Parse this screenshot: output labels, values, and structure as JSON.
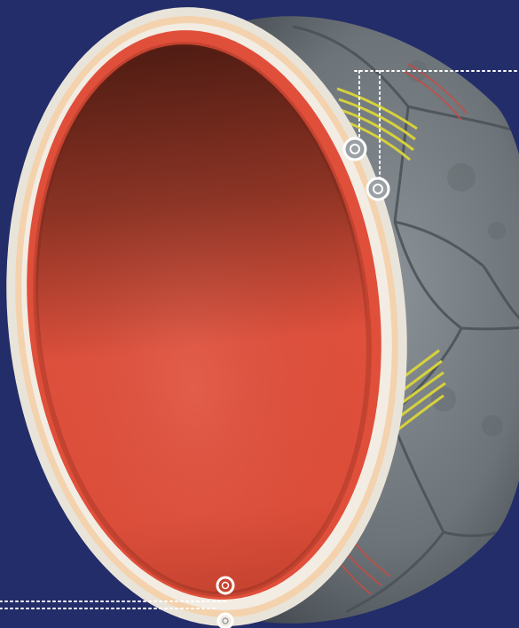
{
  "image": {
    "subject": "ball-cross-section",
    "background_color": "#232d69",
    "colors": {
      "outer_casing": "#7e858a",
      "casing_seam": "#4f565b",
      "yellow_stripes": "#d7d13b",
      "red_stripes": "#c84b43",
      "rim_outer": "#e7e2d6",
      "cream_layer": "#f3d2ad",
      "white_layer": "#f2ece3",
      "red_lining": "#e04f3a",
      "inner_bladder_light": "#e24f3b",
      "inner_bladder_dark": "#5c2419",
      "callout_line": "#ffffff"
    },
    "callout_markers": [
      {
        "name": "marker-upper-1",
        "icon": "ring-marker-icon"
      },
      {
        "name": "marker-upper-2",
        "icon": "ring-marker-icon"
      },
      {
        "name": "marker-lower-1",
        "icon": "ring-marker-icon"
      },
      {
        "name": "marker-lower-2",
        "icon": "ring-marker-icon"
      }
    ]
  }
}
